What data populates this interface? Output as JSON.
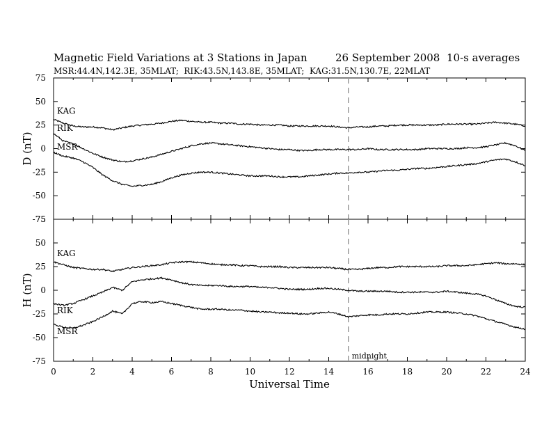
{
  "chart_data": [
    {
      "type": "line",
      "panel": "D",
      "title": "Magnetic Field Variations at 3 Stations in Japan",
      "date": "26 September 2008",
      "averaging": "10-s averages",
      "subtitle": "MSR:44.4N,142.3E, 35MLAT;  RIK:43.5N,143.8E, 35MLAT;  KAG:31.5N,130.7E, 22MLAT",
      "ylabel": "D (nT)",
      "xlabel": "",
      "ylim": [
        -75,
        75
      ],
      "yticks": [
        -75,
        -50,
        -25,
        0,
        25,
        50,
        75
      ],
      "xlim": [
        0,
        24
      ],
      "grid": false,
      "annotations": [
        {
          "text": "",
          "x": 15,
          "style": "dashed-vertical"
        }
      ],
      "series": [
        {
          "name": "KAG",
          "x": [
            0,
            0.5,
            1,
            1.5,
            2,
            2.5,
            3,
            3.5,
            4,
            4.5,
            5,
            5.5,
            6,
            6.5,
            7,
            7.5,
            8,
            8.5,
            9,
            9.5,
            10,
            10.5,
            11,
            11.5,
            12,
            12.5,
            13,
            13.5,
            14,
            14.5,
            15,
            15.5,
            16,
            16.5,
            17,
            17.5,
            18,
            18.5,
            19,
            19.5,
            20,
            20.5,
            21,
            21.5,
            22,
            22.5,
            23,
            23.5,
            24
          ],
          "values": [
            31,
            27,
            24,
            23,
            23,
            22,
            20,
            22,
            24,
            25,
            26,
            27,
            29,
            30,
            29,
            28,
            28,
            27,
            27,
            26,
            26,
            25,
            25,
            25,
            24,
            24,
            24,
            24,
            24,
            23,
            22,
            23,
            23,
            24,
            24,
            25,
            25,
            25,
            25,
            25,
            26,
            26,
            26,
            26,
            27,
            28,
            27,
            26,
            24
          ]
        },
        {
          "name": "RIK",
          "x": [
            0,
            0.5,
            1,
            1.5,
            2,
            2.5,
            3,
            3.5,
            4,
            4.5,
            5,
            5.5,
            6,
            6.5,
            7,
            7.5,
            8,
            8.5,
            9,
            9.5,
            10,
            10.5,
            11,
            11.5,
            12,
            12.5,
            13,
            13.5,
            14,
            14.5,
            15,
            15.5,
            16,
            16.5,
            17,
            17.5,
            18,
            18.5,
            19,
            19.5,
            20,
            20.5,
            21,
            21.5,
            22,
            22.5,
            23,
            23.5,
            24
          ],
          "values": [
            16,
            8,
            5,
            0,
            -5,
            -9,
            -12,
            -14,
            -13,
            -11,
            -9,
            -6,
            -3,
            0,
            3,
            5,
            6,
            5,
            4,
            3,
            2,
            1,
            0,
            -1,
            -1,
            -2,
            -2,
            -1,
            -1,
            -1,
            -1,
            -1,
            0,
            -1,
            -1,
            -1,
            -1,
            -1,
            0,
            0,
            0,
            0,
            1,
            1,
            2,
            4,
            6,
            3,
            -2
          ]
        },
        {
          "name": "MSR",
          "x": [
            0,
            0.5,
            1,
            1.5,
            2,
            2.5,
            3,
            3.5,
            4,
            4.5,
            5,
            5.5,
            6,
            6.5,
            7,
            7.5,
            8,
            8.5,
            9,
            9.5,
            10,
            10.5,
            11,
            11.5,
            12,
            12.5,
            13,
            13.5,
            14,
            14.5,
            15,
            15.5,
            16,
            16.5,
            17,
            17.5,
            18,
            18.5,
            19,
            19.5,
            20,
            20.5,
            21,
            21.5,
            22,
            22.5,
            23,
            23.5,
            24
          ],
          "values": [
            -4,
            -8,
            -10,
            -14,
            -20,
            -28,
            -34,
            -38,
            -40,
            -39,
            -38,
            -35,
            -31,
            -28,
            -26,
            -25,
            -25,
            -26,
            -27,
            -28,
            -29,
            -29,
            -29,
            -30,
            -30,
            -30,
            -29,
            -28,
            -27,
            -26,
            -26,
            -25,
            -25,
            -24,
            -23,
            -23,
            -22,
            -21,
            -21,
            -20,
            -19,
            -18,
            -17,
            -16,
            -14,
            -12,
            -11,
            -14,
            -18
          ]
        }
      ]
    },
    {
      "type": "line",
      "panel": "H",
      "ylabel": "H (nT)",
      "xlabel": "Universal Time",
      "ylim": [
        -75,
        75
      ],
      "yticks": [
        -75,
        -50,
        -25,
        0,
        25,
        50,
        75
      ],
      "xlim": [
        0,
        24
      ],
      "xticks": [
        0,
        2,
        4,
        6,
        8,
        10,
        12,
        14,
        16,
        18,
        20,
        22,
        24
      ],
      "grid": false,
      "annotations": [
        {
          "text": "midnight",
          "x": 15,
          "style": "dashed-vertical"
        }
      ],
      "series": [
        {
          "name": "KAG",
          "x": [
            0,
            0.5,
            1,
            1.5,
            2,
            2.5,
            3,
            3.5,
            4,
            4.5,
            5,
            5.5,
            6,
            6.5,
            7,
            7.5,
            8,
            8.5,
            9,
            9.5,
            10,
            10.5,
            11,
            11.5,
            12,
            12.5,
            13,
            13.5,
            14,
            14.5,
            15,
            15.5,
            16,
            16.5,
            17,
            17.5,
            18,
            18.5,
            19,
            19.5,
            20,
            20.5,
            21,
            21.5,
            22,
            22.5,
            23,
            23.5,
            24
          ],
          "values": [
            30,
            27,
            24,
            23,
            22,
            22,
            20,
            22,
            24,
            25,
            26,
            27,
            29,
            30,
            30,
            29,
            28,
            27,
            27,
            26,
            26,
            25,
            25,
            25,
            24,
            24,
            24,
            24,
            24,
            23,
            22,
            22,
            23,
            24,
            24,
            25,
            25,
            25,
            25,
            25,
            26,
            26,
            26,
            27,
            28,
            29,
            28,
            28,
            27
          ]
        },
        {
          "name": "RIK",
          "x": [
            0,
            0.5,
            1,
            1.5,
            2,
            2.5,
            3,
            3.5,
            4,
            4.5,
            5,
            5.5,
            6,
            6.5,
            7,
            7.5,
            8,
            8.5,
            9,
            9.5,
            10,
            10.5,
            11,
            11.5,
            12,
            12.5,
            13,
            13.5,
            14,
            14.5,
            15,
            15.5,
            16,
            16.5,
            17,
            17.5,
            18,
            18.5,
            19,
            19.5,
            20,
            20.5,
            21,
            21.5,
            22,
            22.5,
            23,
            23.5,
            24
          ],
          "values": [
            -14,
            -16,
            -14,
            -10,
            -6,
            -2,
            3,
            0,
            9,
            11,
            12,
            13,
            11,
            8,
            6,
            5,
            5,
            5,
            4,
            4,
            4,
            3,
            3,
            2,
            1,
            1,
            1,
            2,
            2,
            1,
            0,
            -1,
            -1,
            -1,
            -1,
            -2,
            -2,
            -2,
            -2,
            -2,
            -1,
            -2,
            -3,
            -4,
            -6,
            -10,
            -14,
            -17,
            -18
          ]
        },
        {
          "name": "MSR",
          "x": [
            0,
            0.5,
            1,
            1.5,
            2,
            2.5,
            3,
            3.5,
            4,
            4.5,
            5,
            5.5,
            6,
            6.5,
            7,
            7.5,
            8,
            8.5,
            9,
            9.5,
            10,
            10.5,
            11,
            11.5,
            12,
            12.5,
            13,
            13.5,
            14,
            14.5,
            15,
            15.5,
            16,
            16.5,
            17,
            17.5,
            18,
            18.5,
            19,
            19.5,
            20,
            20.5,
            21,
            21.5,
            22,
            22.5,
            23,
            23.5,
            24
          ],
          "values": [
            -36,
            -39,
            -40,
            -37,
            -33,
            -28,
            -22,
            -25,
            -14,
            -12,
            -13,
            -12,
            -14,
            -16,
            -18,
            -20,
            -20,
            -20,
            -21,
            -21,
            -22,
            -23,
            -23,
            -24,
            -24,
            -25,
            -25,
            -24,
            -23,
            -25,
            -28,
            -27,
            -26,
            -26,
            -25,
            -25,
            -25,
            -24,
            -23,
            -23,
            -23,
            -24,
            -25,
            -27,
            -30,
            -33,
            -36,
            -39,
            -41
          ]
        }
      ]
    }
  ]
}
